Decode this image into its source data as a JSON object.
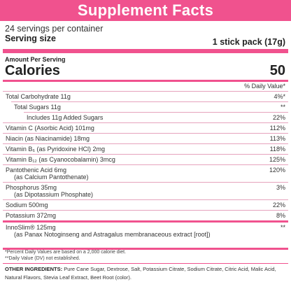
{
  "header": {
    "title": "Supplement Facts"
  },
  "serving": {
    "per_container": "24 servings per container",
    "size_label": "Serving size",
    "size_value": "1 stick pack (17g)"
  },
  "calories": {
    "amount_label": "Amount Per Serving",
    "label": "Calories",
    "value": "50"
  },
  "dv_header": "% Daily Value*",
  "rows": [
    {
      "name": "Total Carbohydrate 11g",
      "sub": "",
      "dv": "4%*",
      "indent": 0
    },
    {
      "name": "Total Sugars 11g",
      "sub": "",
      "dv": "**",
      "indent": 1
    },
    {
      "name": "Includes 11g Added Sugars",
      "sub": "",
      "dv": "22%",
      "indent": 2
    },
    {
      "name": "Vitamin C (Asorbic Acid) 101mg",
      "sub": "",
      "dv": "112%",
      "indent": 0
    },
    {
      "name": "Niacin (as Niacinamide) 18mg",
      "sub": "",
      "dv": "113%",
      "indent": 0
    },
    {
      "name": "Vitamin B₆ (as Pyridoxine HCl) 2mg",
      "sub": "",
      "dv": "118%",
      "indent": 0
    },
    {
      "name": "Vitamin B₁₂ (as Cyanocobalamin) 3mcg",
      "sub": "",
      "dv": "125%",
      "indent": 0
    },
    {
      "name": "Pantothenic Acid 6mg",
      "sub": "(as Calcium Pantothenate)",
      "dv": "120%",
      "indent": 0
    },
    {
      "name": "Phosphorus 35mg",
      "sub": "(as Dipotassium Phosphate)",
      "dv": "3%",
      "indent": 0
    },
    {
      "name": "Sodium 500mg",
      "sub": "",
      "dv": "22%",
      "indent": 0
    },
    {
      "name": "Potassium 372mg",
      "sub": "",
      "dv": "8%",
      "indent": 0
    },
    {
      "name": "InnoSlim® 125mg",
      "sub": "(as Panax Notoginseng and Astragalus membranaceous extract [root])",
      "dv": "**",
      "indent": 0
    }
  ],
  "notes": {
    "percent": "*Percent Daily Values are based on a 2,000 calorie diet.",
    "dv_not_established": "**Daily Value (DV) not established."
  },
  "ingredients": {
    "label": "OTHER INGREDIENTS:",
    "text": "Pure Cane Sugar, Dextrose, Salt, Potassium Citrate, Sodium Citrate, Citric Acid, Malic Acid, Natural Flavors, Stevia Leaf Extract, Beet Root (color)."
  },
  "colors": {
    "accent": "#f0528e",
    "row_rule": "#e6a3bd"
  }
}
